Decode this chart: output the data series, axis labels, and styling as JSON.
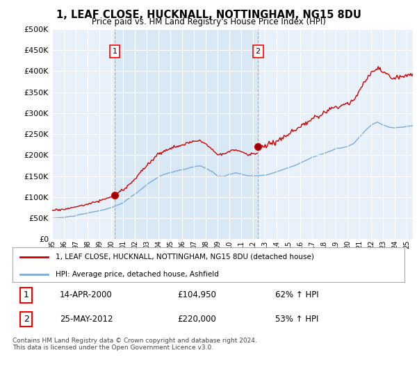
{
  "title": "1, LEAF CLOSE, HUCKNALL, NOTTINGHAM, NG15 8DU",
  "subtitle": "Price paid vs. HM Land Registry's House Price Index (HPI)",
  "legend_line1": "1, LEAF CLOSE, HUCKNALL, NOTTINGHAM, NG15 8DU (detached house)",
  "legend_line2": "HPI: Average price, detached house, Ashfield",
  "annotation1_date": "14-APR-2000",
  "annotation1_price": "£104,950",
  "annotation1_hpi": "62% ↑ HPI",
  "annotation2_date": "25-MAY-2012",
  "annotation2_price": "£220,000",
  "annotation2_hpi": "53% ↑ HPI",
  "footer": "Contains HM Land Registry data © Crown copyright and database right 2024.\nThis data is licensed under the Open Government Licence v3.0.",
  "property_color": "#cc0000",
  "hpi_color": "#7aabdb",
  "shade_color": "#d8e8f5",
  "plot_bg_color": "#e8f0fa",
  "ylim": [
    0,
    500000
  ],
  "yticks": [
    0,
    50000,
    100000,
    150000,
    200000,
    250000,
    300000,
    350000,
    400000,
    450000,
    500000
  ],
  "sale1_t": 2000.29,
  "sale1_p": 104950,
  "sale2_t": 2012.4,
  "sale2_p": 220000,
  "xmin": 1995,
  "xmax": 2025.5
}
